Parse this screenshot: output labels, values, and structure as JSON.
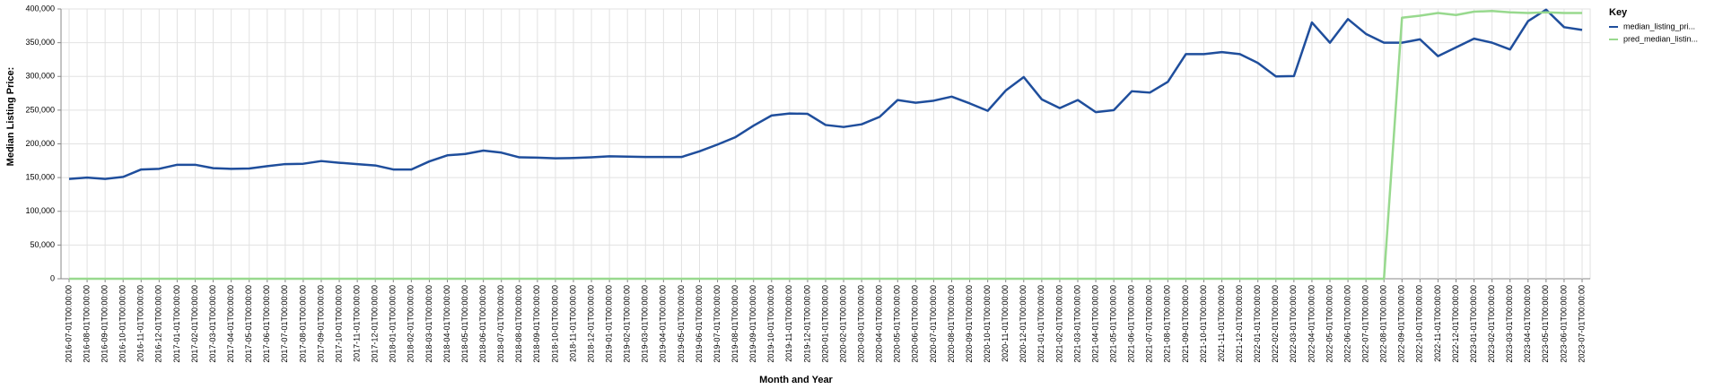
{
  "chart_data": {
    "type": "line",
    "x_label": "Month and Year",
    "y_label": "Median Listing Price:",
    "legend_title": "Key",
    "legend": "top-right",
    "grid": true,
    "categories": [
      "2016-07-01T00:00:00",
      "2016-08-01T00:00:00",
      "2016-09-01T00:00:00",
      "2016-10-01T00:00:00",
      "2016-11-01T00:00:00",
      "2016-12-01T00:00:00",
      "2017-01-01T00:00:00",
      "2017-02-01T00:00:00",
      "2017-03-01T00:00:00",
      "2017-04-01T00:00:00",
      "2017-05-01T00:00:00",
      "2017-06-01T00:00:00",
      "2017-07-01T00:00:00",
      "2017-08-01T00:00:00",
      "2017-09-01T00:00:00",
      "2017-10-01T00:00:00",
      "2017-11-01T00:00:00",
      "2017-12-01T00:00:00",
      "2018-01-01T00:00:00",
      "2018-02-01T00:00:00",
      "2018-03-01T00:00:00",
      "2018-04-01T00:00:00",
      "2018-05-01T00:00:00",
      "2018-06-01T00:00:00",
      "2018-07-01T00:00:00",
      "2018-08-01T00:00:00",
      "2018-09-01T00:00:00",
      "2018-10-01T00:00:00",
      "2018-11-01T00:00:00",
      "2018-12-01T00:00:00",
      "2019-01-01T00:00:00",
      "2019-02-01T00:00:00",
      "2019-03-01T00:00:00",
      "2019-04-01T00:00:00",
      "2019-05-01T00:00:00",
      "2019-06-01T00:00:00",
      "2019-07-01T00:00:00",
      "2019-08-01T00:00:00",
      "2019-09-01T00:00:00",
      "2019-10-01T00:00:00",
      "2019-11-01T00:00:00",
      "2019-12-01T00:00:00",
      "2020-01-01T00:00:00",
      "2020-02-01T00:00:00",
      "2020-03-01T00:00:00",
      "2020-04-01T00:00:00",
      "2020-05-01T00:00:00",
      "2020-06-01T00:00:00",
      "2020-07-01T00:00:00",
      "2020-08-01T00:00:00",
      "2020-09-01T00:00:00",
      "2020-10-01T00:00:00",
      "2020-11-01T00:00:00",
      "2020-12-01T00:00:00",
      "2021-01-01T00:00:00",
      "2021-02-01T00:00:00",
      "2021-03-01T00:00:00",
      "2021-04-01T00:00:00",
      "2021-05-01T00:00:00",
      "2021-06-01T00:00:00",
      "2021-07-01T00:00:00",
      "2021-08-01T00:00:00",
      "2021-09-01T00:00:00",
      "2021-10-01T00:00:00",
      "2021-11-01T00:00:00",
      "2021-12-01T00:00:00",
      "2022-01-01T00:00:00",
      "2022-02-01T00:00:00",
      "2022-03-01T00:00:00",
      "2022-04-01T00:00:00",
      "2022-05-01T00:00:00",
      "2022-06-01T00:00:00",
      "2022-07-01T00:00:00",
      "2022-08-01T00:00:00",
      "2022-09-01T00:00:00",
      "2022-10-01T00:00:00",
      "2022-11-01T00:00:00",
      "2022-12-01T00:00:00",
      "2023-01-01T00:00:00",
      "2023-02-01T00:00:00",
      "2023-03-01T00:00:00",
      "2023-04-01T00:00:00",
      "2023-05-01T00:00:00",
      "2023-06-01T00:00:00",
      "2023-07-01T00:00:00"
    ],
    "series": [
      {
        "name": "median_listing_pri...",
        "color": "#1f4e9c",
        "values": [
          148000,
          150000,
          148000,
          151000,
          162000,
          163000,
          169000,
          169000,
          164000,
          163000,
          163500,
          167000,
          170000,
          170500,
          174500,
          172000,
          170000,
          168000,
          162000,
          162000,
          174000,
          183000,
          185000,
          190000,
          187000,
          180000,
          179500,
          178500,
          179000,
          180000,
          181500,
          181000,
          180500,
          180500,
          180500,
          189000,
          199000,
          210000,
          227000,
          242000,
          245000,
          244500,
          228000,
          225000,
          229000,
          240000,
          265000,
          261000,
          264000,
          270000,
          260000,
          249000,
          279000,
          299000,
          266000,
          253000,
          265000,
          247000,
          250000,
          278000,
          276000,
          292000,
          333000,
          333000,
          336000,
          333000,
          320000,
          300000,
          300500,
          380000,
          350000,
          385000,
          363000,
          350000,
          350000,
          355000,
          330000,
          343000,
          356000,
          350000,
          340000,
          382000,
          399000,
          373000,
          369000
        ]
      },
      {
        "name": "pred_median_listin...",
        "color": "#98d98e",
        "values": [
          0,
          0,
          0,
          0,
          0,
          0,
          0,
          0,
          0,
          0,
          0,
          0,
          0,
          0,
          0,
          0,
          0,
          0,
          0,
          0,
          0,
          0,
          0,
          0,
          0,
          0,
          0,
          0,
          0,
          0,
          0,
          0,
          0,
          0,
          0,
          0,
          0,
          0,
          0,
          0,
          0,
          0,
          0,
          0,
          0,
          0,
          0,
          0,
          0,
          0,
          0,
          0,
          0,
          0,
          0,
          0,
          0,
          0,
          0,
          0,
          0,
          0,
          0,
          0,
          0,
          0,
          0,
          0,
          0,
          0,
          0,
          0,
          0,
          0,
          387000,
          390000,
          394000,
          391000,
          396000,
          397000,
          395000,
          394000,
          395000,
          394000,
          394000
        ]
      }
    ],
    "ylim": [
      0,
      400000
    ],
    "yticks": [
      0,
      {
        "value": 50000,
        "label": "50,000"
      },
      {
        "value": 100000,
        "label": "100,000"
      },
      {
        "value": 150000,
        "label": "150,000"
      },
      {
        "value": 200000,
        "label": "200,000"
      },
      {
        "value": 250000,
        "label": "250,000"
      },
      {
        "value": 300000,
        "label": "300,000"
      },
      {
        "value": 350000,
        "label": "350,000"
      },
      {
        "value": 400000,
        "label": "400,000"
      }
    ]
  }
}
